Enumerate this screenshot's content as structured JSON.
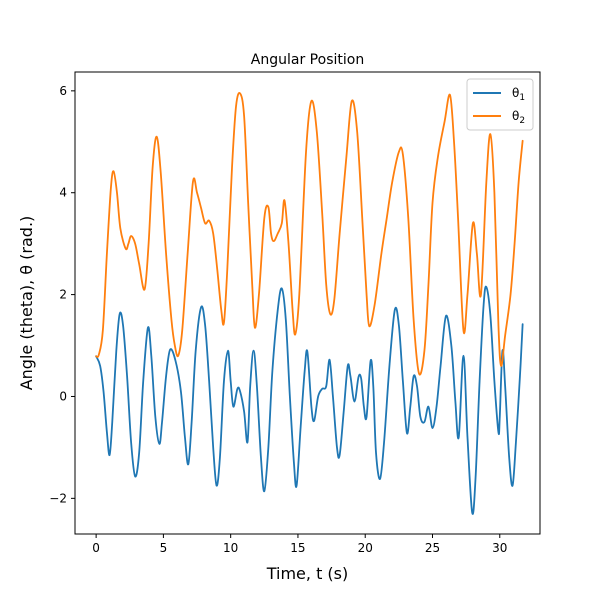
{
  "chart_data": {
    "type": "line",
    "title": "Angular Position",
    "xlabel": "Time, t (s)",
    "ylabel": "Angle (theta),  θ (rad.)",
    "xlim": [
      -1.57,
      32.99
    ],
    "ylim": [
      -2.7,
      6.37
    ],
    "xticks": [
      0,
      5,
      10,
      15,
      20,
      25,
      30
    ],
    "yticks": [
      -2,
      0,
      2,
      4,
      6
    ],
    "xtick_labels": [
      "0",
      "5",
      "10",
      "15",
      "20",
      "25",
      "30"
    ],
    "ytick_labels": [
      "−2",
      "0",
      "2",
      "4",
      "6"
    ],
    "grid": false,
    "legend": "upper-right",
    "series": [
      {
        "name": "θ1",
        "legend_base": "θ",
        "legend_sub": "1",
        "color": "#1f77b4",
        "points": [
          [
            0.0,
            0.79
          ],
          [
            0.3,
            0.6
          ],
          [
            0.55,
            0.1
          ],
          [
            0.8,
            -0.7
          ],
          [
            1.0,
            -1.15
          ],
          [
            1.2,
            -0.5
          ],
          [
            1.5,
            0.9
          ],
          [
            1.75,
            1.62
          ],
          [
            2.0,
            1.4
          ],
          [
            2.3,
            0.4
          ],
          [
            2.6,
            -0.9
          ],
          [
            2.9,
            -1.57
          ],
          [
            3.2,
            -1.1
          ],
          [
            3.5,
            0.3
          ],
          [
            3.85,
            1.35
          ],
          [
            4.1,
            0.8
          ],
          [
            4.4,
            -0.4
          ],
          [
            4.7,
            -0.93
          ],
          [
            4.9,
            -0.5
          ],
          [
            5.2,
            0.4
          ],
          [
            5.5,
            0.92
          ],
          [
            5.9,
            0.7
          ],
          [
            6.3,
            0.1
          ],
          [
            6.6,
            -0.8
          ],
          [
            6.85,
            -1.33
          ],
          [
            7.1,
            -0.5
          ],
          [
            7.4,
            0.9
          ],
          [
            7.8,
            1.75
          ],
          [
            8.1,
            1.4
          ],
          [
            8.4,
            0.3
          ],
          [
            8.7,
            -1.0
          ],
          [
            8.95,
            -1.75
          ],
          [
            9.2,
            -1.2
          ],
          [
            9.5,
            0.3
          ],
          [
            9.8,
            0.9
          ],
          [
            10.0,
            0.3
          ],
          [
            10.2,
            -0.2
          ],
          [
            10.5,
            0.15
          ],
          [
            10.7,
            0.1
          ],
          [
            11.0,
            -0.3
          ],
          [
            11.25,
            -0.9
          ],
          [
            11.45,
            0.2
          ],
          [
            11.7,
            0.9
          ],
          [
            11.95,
            0.2
          ],
          [
            12.25,
            -1.2
          ],
          [
            12.5,
            -1.86
          ],
          [
            12.8,
            -1.0
          ],
          [
            13.1,
            0.5
          ],
          [
            13.5,
            1.7
          ],
          [
            13.8,
            2.12
          ],
          [
            14.1,
            1.5
          ],
          [
            14.4,
            0.0
          ],
          [
            14.7,
            -1.3
          ],
          [
            14.9,
            -1.75
          ],
          [
            15.2,
            -0.6
          ],
          [
            15.5,
            0.5
          ],
          [
            15.7,
            0.88
          ],
          [
            16.0,
            -0.2
          ],
          [
            16.2,
            -0.48
          ],
          [
            16.5,
            0.0
          ],
          [
            16.8,
            0.15
          ],
          [
            17.1,
            0.2
          ],
          [
            17.35,
            0.72
          ],
          [
            17.6,
            0.0
          ],
          [
            17.9,
            -1.0
          ],
          [
            18.1,
            -1.15
          ],
          [
            18.4,
            -0.3
          ],
          [
            18.7,
            0.6
          ],
          [
            18.9,
            0.4
          ],
          [
            19.2,
            -0.1
          ],
          [
            19.5,
            0.38
          ],
          [
            19.7,
            0.35
          ],
          [
            19.9,
            -0.2
          ],
          [
            20.1,
            -0.4
          ],
          [
            20.4,
            0.7
          ],
          [
            20.6,
            0.2
          ],
          [
            20.8,
            -1.1
          ],
          [
            21.1,
            -1.62
          ],
          [
            21.4,
            -0.9
          ],
          [
            21.8,
            0.6
          ],
          [
            22.2,
            1.7
          ],
          [
            22.5,
            1.4
          ],
          [
            22.8,
            0.3
          ],
          [
            23.1,
            -0.72
          ],
          [
            23.35,
            -0.2
          ],
          [
            23.6,
            0.4
          ],
          [
            23.85,
            0.2
          ],
          [
            24.1,
            -0.4
          ],
          [
            24.4,
            -0.5
          ],
          [
            24.7,
            -0.2
          ],
          [
            25.0,
            -0.62
          ],
          [
            25.3,
            -0.2
          ],
          [
            25.6,
            0.6
          ],
          [
            26.0,
            1.58
          ],
          [
            26.4,
            1.0
          ],
          [
            26.7,
            -0.1
          ],
          [
            26.95,
            -0.8
          ],
          [
            27.3,
            0.8
          ],
          [
            27.6,
            -0.8
          ],
          [
            27.95,
            -2.28
          ],
          [
            28.2,
            -1.6
          ],
          [
            28.5,
            0.3
          ],
          [
            28.8,
            1.8
          ],
          [
            29.0,
            2.15
          ],
          [
            29.3,
            1.6
          ],
          [
            29.6,
            0.3
          ],
          [
            29.9,
            -0.7
          ],
          [
            30.0,
            -0.4
          ],
          [
            30.2,
            0.9
          ],
          [
            30.4,
            0.2
          ],
          [
            30.7,
            -1.2
          ],
          [
            30.95,
            -1.75
          ],
          [
            31.2,
            -0.9
          ],
          [
            31.5,
            0.4
          ],
          [
            31.7,
            1.42
          ]
        ]
      },
      {
        "name": "θ2",
        "legend_base": "θ",
        "legend_sub": "2",
        "color": "#ff7f0e",
        "points": [
          [
            0.0,
            0.79
          ],
          [
            0.2,
            0.82
          ],
          [
            0.5,
            1.3
          ],
          [
            0.8,
            2.8
          ],
          [
            1.1,
            4.1
          ],
          [
            1.3,
            4.42
          ],
          [
            1.55,
            4.0
          ],
          [
            1.8,
            3.3
          ],
          [
            2.2,
            2.9
          ],
          [
            2.4,
            3.0
          ],
          [
            2.6,
            3.15
          ],
          [
            2.9,
            3.0
          ],
          [
            3.2,
            2.6
          ],
          [
            3.6,
            2.1
          ],
          [
            3.9,
            3.0
          ],
          [
            4.2,
            4.5
          ],
          [
            4.5,
            5.1
          ],
          [
            4.8,
            4.4
          ],
          [
            5.2,
            2.8
          ],
          [
            5.6,
            1.5
          ],
          [
            5.85,
            1.0
          ],
          [
            6.1,
            0.8
          ],
          [
            6.4,
            1.3
          ],
          [
            6.8,
            2.8
          ],
          [
            7.2,
            4.22
          ],
          [
            7.5,
            4.0
          ],
          [
            7.8,
            3.7
          ],
          [
            8.1,
            3.4
          ],
          [
            8.4,
            3.45
          ],
          [
            8.7,
            3.2
          ],
          [
            9.0,
            2.5
          ],
          [
            9.3,
            1.7
          ],
          [
            9.5,
            1.45
          ],
          [
            9.75,
            2.5
          ],
          [
            10.1,
            4.5
          ],
          [
            10.4,
            5.7
          ],
          [
            10.7,
            5.95
          ],
          [
            11.0,
            5.5
          ],
          [
            11.3,
            3.8
          ],
          [
            11.6,
            2.2
          ],
          [
            11.8,
            1.35
          ],
          [
            12.1,
            2.0
          ],
          [
            12.5,
            3.5
          ],
          [
            12.8,
            3.72
          ],
          [
            13.0,
            3.2
          ],
          [
            13.2,
            3.05
          ],
          [
            13.5,
            3.2
          ],
          [
            13.8,
            3.4
          ],
          [
            14.0,
            3.85
          ],
          [
            14.3,
            3.0
          ],
          [
            14.6,
            1.7
          ],
          [
            14.8,
            1.22
          ],
          [
            15.1,
            2.0
          ],
          [
            15.6,
            4.8
          ],
          [
            16.0,
            5.8
          ],
          [
            16.4,
            5.2
          ],
          [
            16.8,
            3.6
          ],
          [
            17.1,
            2.2
          ],
          [
            17.4,
            1.62
          ],
          [
            17.7,
            1.9
          ],
          [
            18.1,
            3.2
          ],
          [
            18.6,
            4.7
          ],
          [
            19.0,
            5.8
          ],
          [
            19.4,
            5.2
          ],
          [
            19.8,
            3.4
          ],
          [
            20.1,
            2.0
          ],
          [
            20.3,
            1.38
          ],
          [
            20.7,
            1.8
          ],
          [
            21.2,
            2.8
          ],
          [
            21.6,
            3.5
          ],
          [
            22.0,
            4.2
          ],
          [
            22.5,
            4.8
          ],
          [
            22.8,
            4.75
          ],
          [
            23.2,
            3.5
          ],
          [
            23.6,
            1.5
          ],
          [
            24.0,
            0.45
          ],
          [
            24.4,
            0.9
          ],
          [
            24.7,
            2.2
          ],
          [
            25.0,
            3.8
          ],
          [
            25.4,
            4.7
          ],
          [
            25.9,
            5.4
          ],
          [
            26.3,
            5.92
          ],
          [
            26.6,
            5.0
          ],
          [
            26.9,
            3.5
          ],
          [
            27.3,
            1.3
          ],
          [
            27.6,
            2.0
          ],
          [
            28.0,
            3.4
          ],
          [
            28.3,
            2.8
          ],
          [
            28.6,
            2.0
          ],
          [
            29.0,
            4.2
          ],
          [
            29.3,
            5.15
          ],
          [
            29.6,
            4.0
          ],
          [
            29.9,
            1.4
          ],
          [
            30.1,
            0.6
          ],
          [
            30.4,
            1.2
          ],
          [
            30.8,
            2.0
          ],
          [
            31.1,
            3.0
          ],
          [
            31.4,
            4.2
          ],
          [
            31.7,
            5.02
          ]
        ]
      }
    ]
  }
}
